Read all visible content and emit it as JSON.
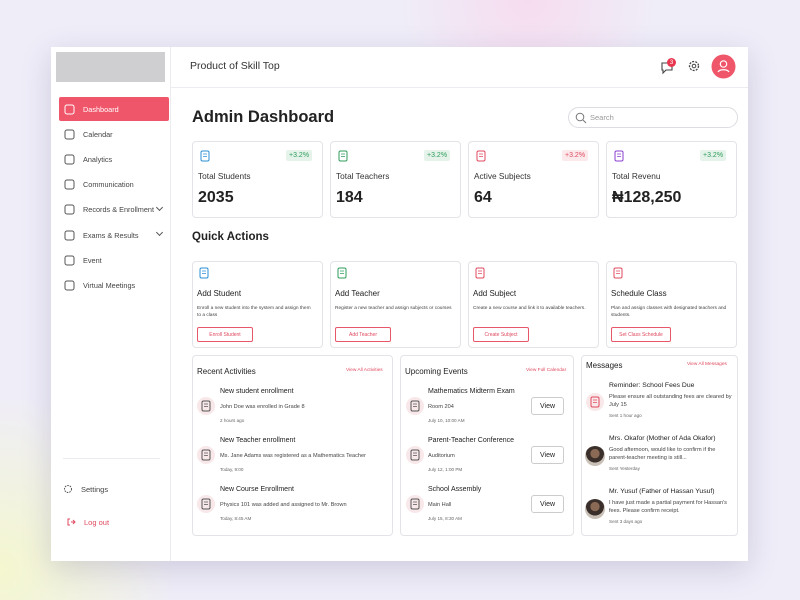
{
  "header": {
    "product": "Product of Skill Top",
    "notification_count": "3"
  },
  "sidebar": {
    "nav": [
      "Dashboard",
      "Calendar",
      "Analytics",
      "Communication",
      "Records & Enrollment",
      "Exams & Results",
      "Event",
      "Virtual Meetings"
    ],
    "settings": "Settings",
    "logout": "Log out"
  },
  "page": {
    "title": "Admin Dashboard",
    "search_placeholder": "Search"
  },
  "stats": [
    {
      "label": "Total Students",
      "value": "2035",
      "change": "+3.2%",
      "color": "#2e9d5b"
    },
    {
      "label": "Total Teachers",
      "value": "184",
      "change": "+3.2%",
      "color": "#2e9d5b"
    },
    {
      "label": "Active Subjects",
      "value": "64",
      "change": "+3.2%",
      "color": "#e04a5f"
    },
    {
      "label": "Total Revenu",
      "value": "₦128,250",
      "change": "+3.2%",
      "color": "#2e9d5b"
    }
  ],
  "quick_actions": {
    "title": "Quick Actions",
    "items": [
      {
        "title": "Add Student",
        "description": "Enroll a new student into the system and assign them to a class",
        "button": "Enroll Student"
      },
      {
        "title": "Add Teacher",
        "description": "Register a new teacher and assign subjects or courses",
        "button": "Add Teacher"
      },
      {
        "title": "Add Subject",
        "description": "Create a new course and link it to available teachers.",
        "button": "Create Subject"
      },
      {
        "title": "Schedule Class",
        "description": "Plan and assign classes with designated teachers and students.",
        "button": "Set Class Schedule"
      }
    ]
  },
  "recent_activities": {
    "title": "Recent Activities",
    "link": "View All Activities",
    "items": [
      {
        "title": "New student enrollment",
        "detail": "John Doe was enrolled in Grade 8",
        "time": "2 hours ago"
      },
      {
        "title": "New Teacher enrollment",
        "detail": "Ms. Jane Adams was registered as a Mathematics Teacher",
        "time": "Today, 9:00"
      },
      {
        "title": "New Course Enrollment",
        "detail": "Physics 101 was added and assigned to Mr. Brown",
        "time": "Today, 8:45 AM"
      }
    ]
  },
  "upcoming_events": {
    "title": "Upcoming Events",
    "link": "View Full Calendar",
    "items": [
      {
        "title": "Mathematics Midterm Exam",
        "location": "Room 204",
        "time": "July 10, 10:00 AM",
        "button": "View"
      },
      {
        "title": "Parent-Teacher Conference",
        "location": "Auditorium",
        "time": "July 12, 1:00 PM",
        "button": "View"
      },
      {
        "title": "School Assembly",
        "location": "Main Hall",
        "time": "July 15, 8:30 AM",
        "button": "View"
      }
    ]
  },
  "messages": {
    "title": "Messages",
    "link": "View All Messages",
    "items": [
      {
        "title": "Reminder: School Fees Due",
        "body": "Please ensure all outstanding fees are cleared by July 15",
        "time": "Sent 1 hour ago"
      },
      {
        "title": "Mrs. Okafor (Mother of Ada Okafor)",
        "body": "Good afternoon, would like to confirm if the parent-teacher meeting is still...",
        "time": "Sent Yesterday"
      },
      {
        "title": "Mr. Yusuf (Father of Hassan Yusuf)",
        "body": "I have just made a partial payment for Hassan's fees. Please confirm receipt.",
        "time": "Sent 3 days ago"
      }
    ]
  }
}
